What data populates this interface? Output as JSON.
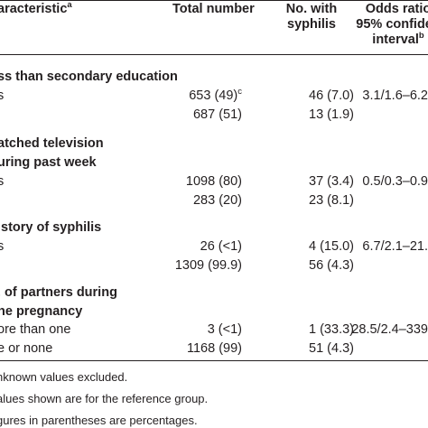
{
  "header": {
    "characteristic": "aracteristic",
    "characteristic_sup": "a",
    "total_number": "Total number",
    "no_with_line1": "No. with",
    "no_with_line2": "syphilis",
    "odds_line1": "Odds ratio",
    "odds_line2": "95% confiden",
    "odds_line3": "interval",
    "odds_sup": "b"
  },
  "groups": [
    {
      "title_lines": [
        "ss than secondary education"
      ],
      "rows": [
        {
          "label": "s",
          "total": "653 (49)",
          "total_sup": "c",
          "syphilis": "46 (7.0)",
          "odds": "3.1/1.6–6.2"
        },
        {
          "label": "",
          "total": "687 (51)",
          "total_sup": "",
          "syphilis": "13 (1.9)",
          "odds": ""
        }
      ]
    },
    {
      "title_lines": [
        "atched television",
        "uring past week"
      ],
      "rows": [
        {
          "label": "s",
          "total": "1098 (80)",
          "total_sup": "",
          "syphilis": "37 (3.4)",
          "odds": "0.5/0.3–0.9"
        },
        {
          "label": "",
          "total": "283 (20)",
          "total_sup": "",
          "syphilis": "23 (8.1)",
          "odds": ""
        }
      ]
    },
    {
      "title_lines": [
        "istory of syphilis"
      ],
      "rows": [
        {
          "label": "s",
          "total": "26 (<1)",
          "total_sup": "",
          "syphilis": "4 (15.0)",
          "odds": "6.7/2.1–21."
        },
        {
          "label": "",
          "total": "1309 (99.9)",
          "total_sup": "",
          "syphilis": "56 (4.3)",
          "odds": ""
        }
      ]
    },
    {
      "title_lines": [
        ". of partners during",
        "he pregnancy"
      ],
      "rows": [
        {
          "label": "ore than one",
          "total": "3 (<1)",
          "total_sup": "",
          "syphilis": "1 (33.3)",
          "odds": "28.5/2.4–339"
        },
        {
          "label": "e or none",
          "total": "1168 (99)",
          "total_sup": "",
          "syphilis": "51 (4.3)",
          "odds": ""
        }
      ]
    }
  ],
  "footnotes": [
    {
      "mark": "",
      "text": "nknown values excluded."
    },
    {
      "mark": "",
      "text": "alues shown are for the reference group."
    },
    {
      "mark": "",
      "text": "gures in parentheses are percentages."
    }
  ],
  "colors": {
    "text": "#231f20",
    "band": "#e6e7e8",
    "background": "#ffffff"
  }
}
